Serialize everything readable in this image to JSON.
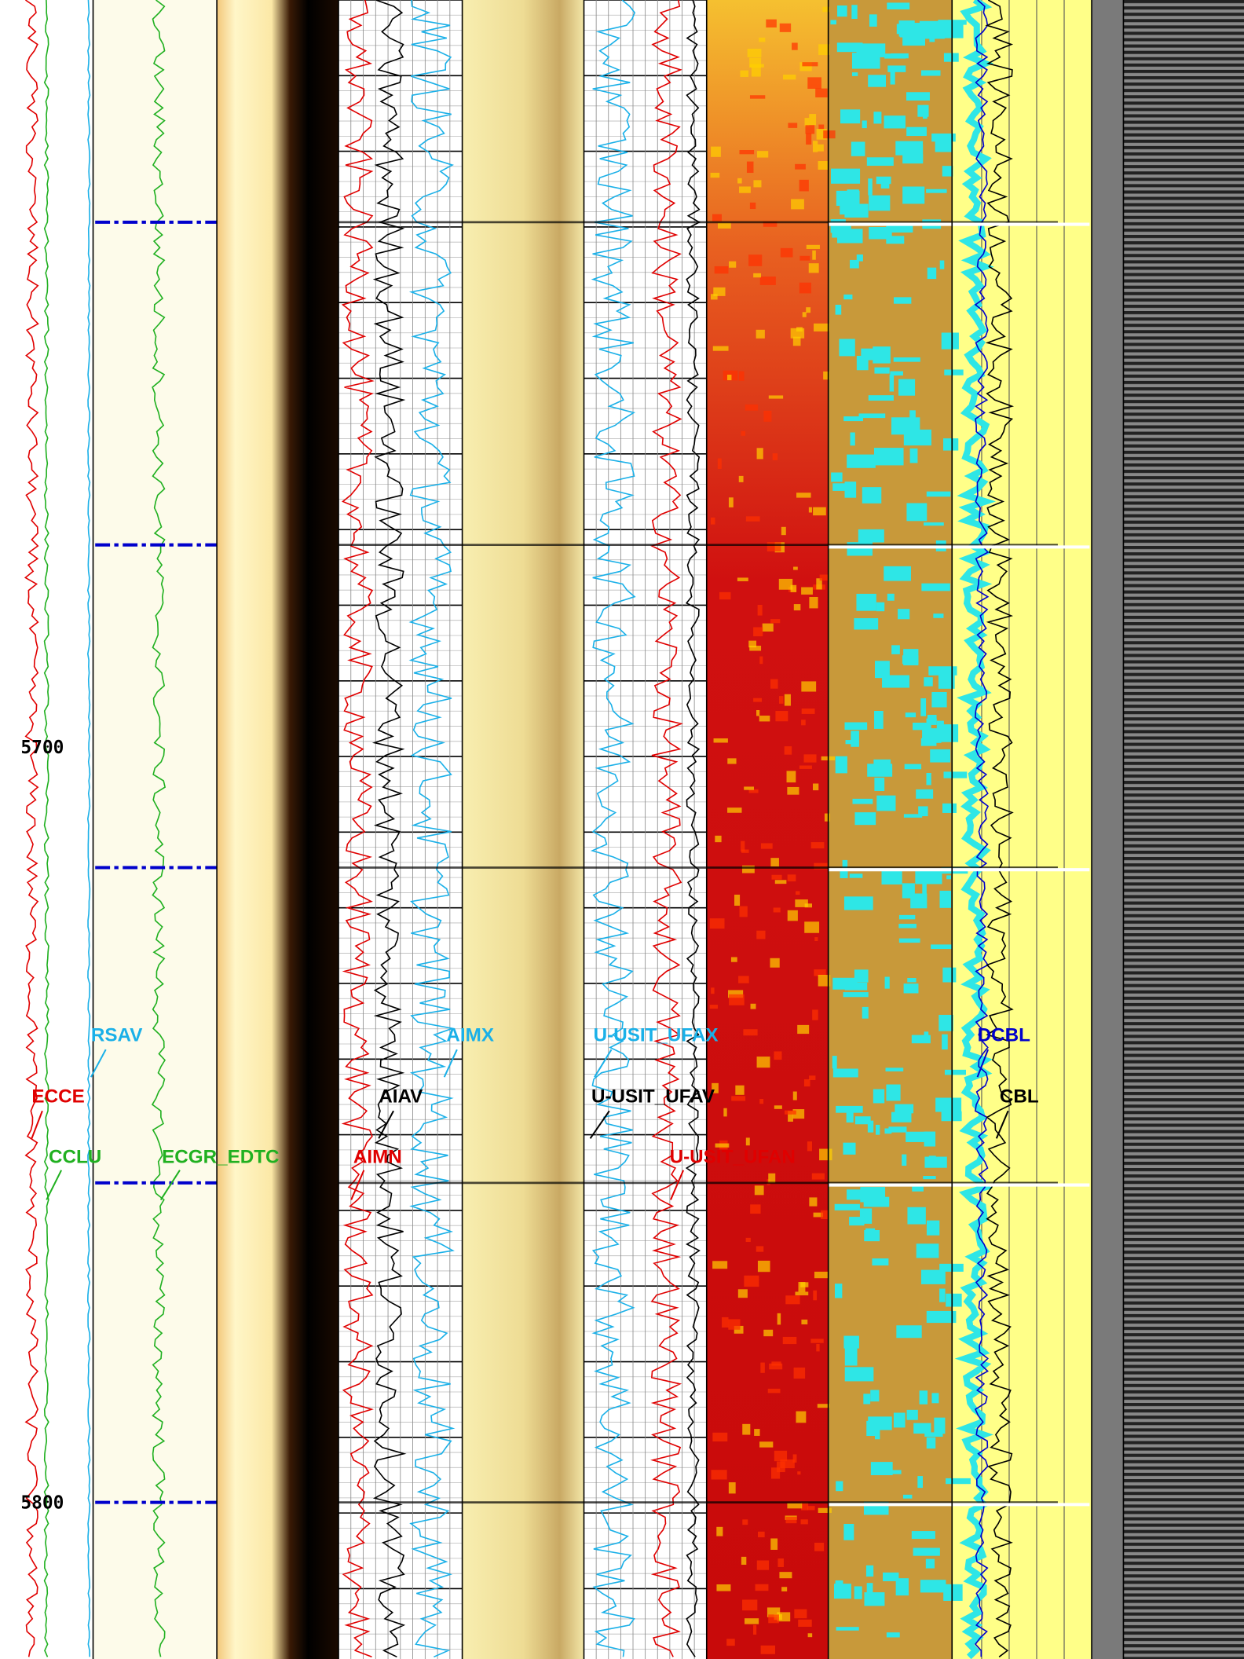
{
  "depth_labels": [
    "5700",
    "5800"
  ],
  "curve_labels": [
    "RSAV",
    "ECCE",
    "CCLU",
    "ECGR_EDTC",
    "AIMX",
    "AIAV",
    "AIMN",
    "U-USIT_UFAX",
    "U-USIT_UFAV",
    "U-USIT_UFAN",
    "DCBL",
    "CBL"
  ]
}
